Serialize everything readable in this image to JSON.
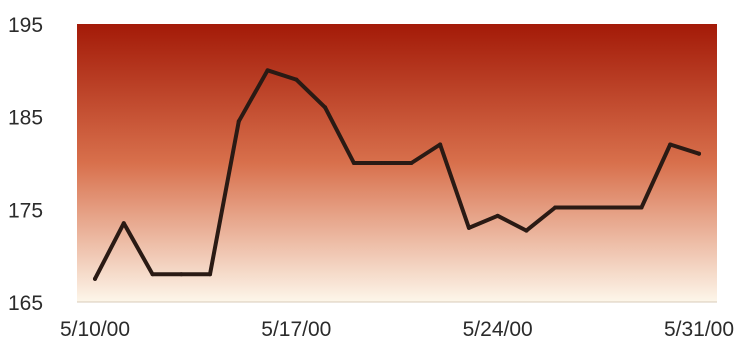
{
  "chart_data": {
    "type": "line",
    "title": "",
    "xlabel": "",
    "ylabel": "",
    "ylim": [
      165,
      195
    ],
    "yticks": [
      "195",
      "185",
      "175",
      "165"
    ],
    "xtick_labels": [
      "5/10/00",
      "5/17/00",
      "5/24/00",
      "5/31/00"
    ],
    "x": [
      "5/10/00",
      "5/11/00",
      "5/12/00",
      "5/13/00",
      "5/14/00",
      "5/15/00",
      "5/16/00",
      "5/17/00",
      "5/18/00",
      "5/19/00",
      "5/20/00",
      "5/21/00",
      "5/22/00",
      "5/23/00",
      "5/24/00",
      "5/25/00",
      "5/26/00",
      "5/27/00",
      "5/28/00",
      "5/29/00",
      "5/30/00",
      "5/31/00"
    ],
    "series": [
      {
        "values": [
          167.5,
          173.5,
          168,
          168,
          168,
          184.5,
          190,
          189,
          186,
          180,
          180,
          180,
          182,
          173,
          174.3,
          172.7,
          175.2,
          175.2,
          175.2,
          175.2,
          182,
          181
        ]
      }
    ],
    "grid": false,
    "legend": "none",
    "colors": {
      "line": "#2a1a14",
      "plot_top": "#a31a08",
      "plot_mid": "#d8704c",
      "plot_bottom": "#fdf6ea",
      "tick_text": "#2b2b2b"
    }
  }
}
